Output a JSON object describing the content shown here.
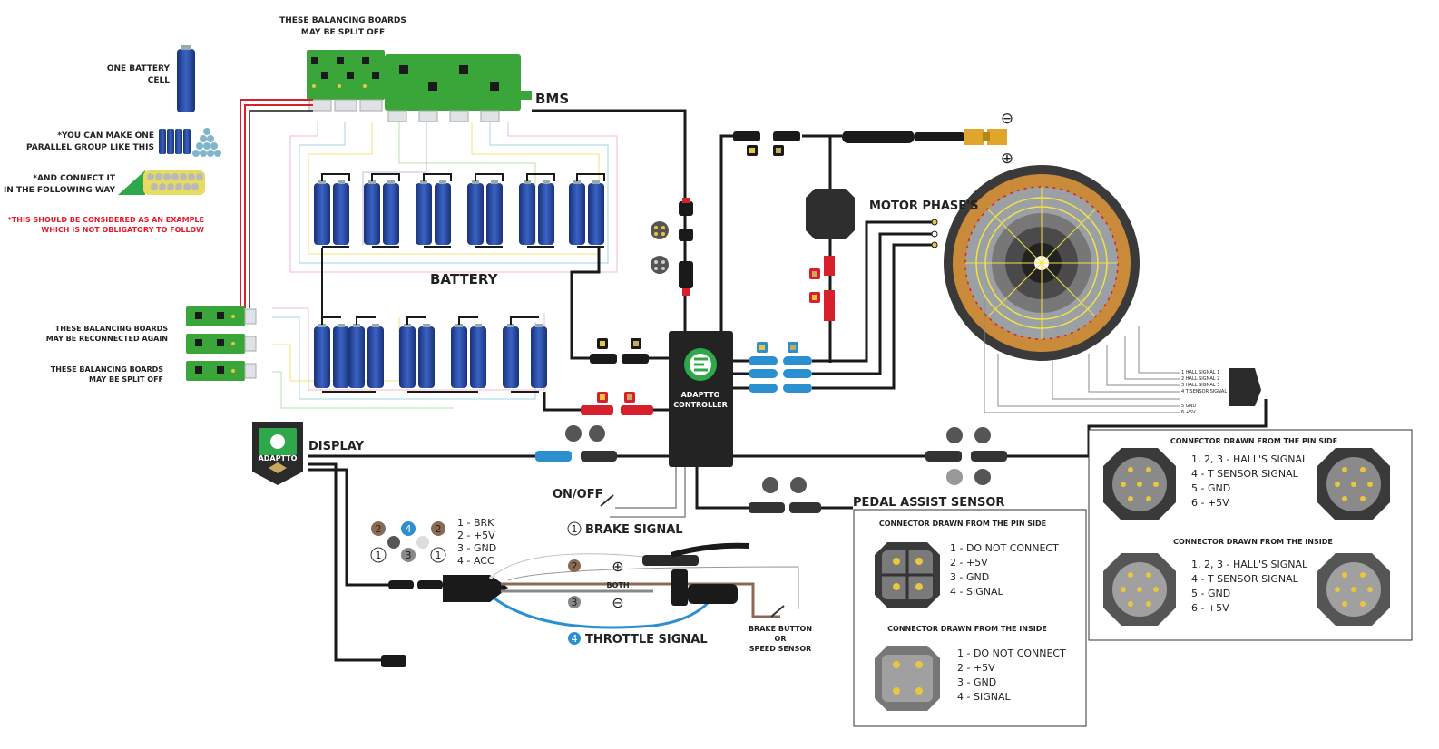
{
  "colors": {
    "cell_blue": "#1f3f8f",
    "board_green": "#3aa63a",
    "wire_black": "#1a1a1a",
    "wire_red": "#d8202c",
    "brand_green": "#2ea84a",
    "note_red": "#e31b2c",
    "throttle_blue": "#2b8fd0",
    "brake_brown": "#8b6a55",
    "motor_copper": "#c98a3a"
  },
  "legend": {
    "one_cell": [
      "ONE BATTERY",
      "CELL"
    ],
    "parallel_group": [
      "*YOU CAN MAKE ONE",
      "PARALLEL GROUP LIKE THIS"
    ],
    "connect_way": [
      "*AND CONNECT IT",
      "IN THE FOLLOWING WAY"
    ],
    "example_note": [
      "*THIS SHOULD BE CONSIDERED AS AN EXAMPLE",
      "WHICH IS NOT OBLIGATORY TO FOLLOW"
    ]
  },
  "labels": {
    "top_boards": [
      "THESE BALANCING BOARDS",
      "MAY BE SPLIT OFF"
    ],
    "bms": "BMS",
    "battery": "BATTERY",
    "reconnected": [
      "THESE BALANCING BOARDS",
      "MAY BE RECONNECTED AGAIN"
    ],
    "split_off": [
      "THESE BALANCING BOARDS",
      "MAY BE SPLIT OFF"
    ],
    "motor_phases": "MOTOR PHASE'S",
    "minus": "⊖",
    "plus": "⊕",
    "controller_brand": "ADAPTTO",
    "controller_title": "CONTROLLER",
    "display": "DISPLAY",
    "display_brand": "ADAPTTO",
    "on_off": "ON/OFF",
    "pedal_assist": "PEDAL ASSIST SENSOR",
    "brake_signal": "BRAKE SIGNAL",
    "throttle_signal": "THROTTLE SIGNAL",
    "both": "BOTH",
    "brake_button": [
      "BRAKE BUTTON",
      "OR",
      "SPEED SENSOR"
    ]
  },
  "throttle_pins": [
    "1 - BRK",
    "2 -  +5V",
    "3 - GND",
    "4 - ACC"
  ],
  "pin_badges": {
    "one": "1",
    "two": "2",
    "three": "3",
    "four": "4"
  },
  "hall_wires": [
    "1 HALL SIGNAL 1",
    "2 HALL SIGNAL 2",
    "3 HALL SIGNAL 3",
    "4 T SENSOR SIGNAL",
    "5 GND",
    "6 +5V"
  ],
  "pas_box": {
    "pin_side_title": "CONNECTOR DRAWN FROM THE PIN SIDE",
    "pin_side_pins": [
      "1 - DO NOT CONNECT",
      "2 - +5V",
      "3 - GND",
      "4 - SIGNAL"
    ],
    "inside_title": "CONNECTOR DRAWN FROM THE INSIDE",
    "inside_pins": [
      "1 - DO NOT CONNECT",
      "2 - +5V",
      "3 - GND",
      "4 - SIGNAL"
    ]
  },
  "hall_box": {
    "pin_side_title": "CONNECTOR DRAWN FROM THE PIN SIDE",
    "pin_side_pins": [
      "1, 2, 3 - HALL'S  SIGNAL",
      "4 - T SENSOR SIGNAL",
      "5 - GND",
      "6 - +5V"
    ],
    "inside_title": "CONNECTOR DRAWN FROM THE INSIDE",
    "inside_pins": [
      "1, 2, 3 - HALL'S  SIGNAL",
      "4 - T SENSOR SIGNAL",
      "5 - GND",
      "6 - +5V"
    ]
  }
}
